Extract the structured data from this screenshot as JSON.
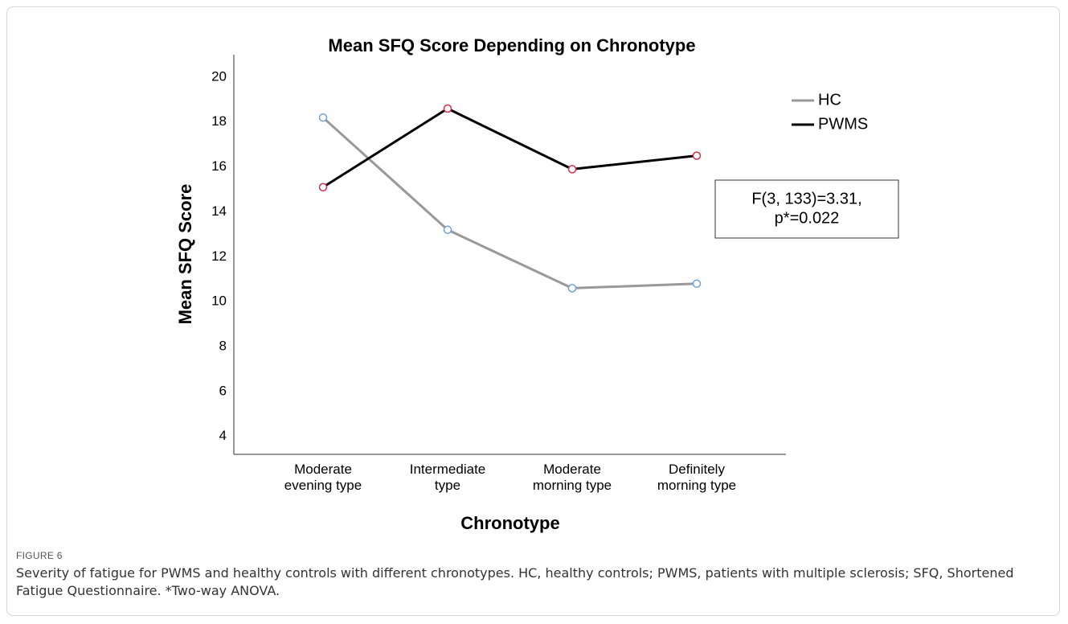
{
  "chart_data": {
    "type": "line",
    "title": "Mean SFQ Score Depending on Chronotype",
    "x_label": "Chronotype",
    "y_label": "Mean SFQ Score",
    "categories": [
      "Moderate evening type",
      "Intermediate type",
      "Moderate morning type",
      "Definitely morning type"
    ],
    "series": [
      {
        "name": "HC",
        "color": "#999999",
        "marker_color": "#6fa0d8",
        "values": [
          18.2,
          13.2,
          10.6,
          10.8
        ]
      },
      {
        "name": "PWMS",
        "color": "#000000",
        "marker_color": "#d0304a",
        "values": [
          15.1,
          18.6,
          15.9,
          16.5
        ]
      }
    ],
    "ylim": [
      3.2,
      21
    ],
    "yticks": [
      4,
      6,
      8,
      10,
      12,
      14,
      16,
      18,
      20
    ],
    "grid": false,
    "legend": "right",
    "annotation": [
      "F(3, 133)=3.31,",
      "p*=0.022"
    ]
  },
  "caption": {
    "label": "FIGURE 6",
    "text": "Severity of fatigue for PWMS and healthy controls with different chronotypes. HC, healthy controls; PWMS, patients with multiple sclerosis; SFQ, Shortened Fatigue Questionnaire. *Two-way ANOVA."
  }
}
